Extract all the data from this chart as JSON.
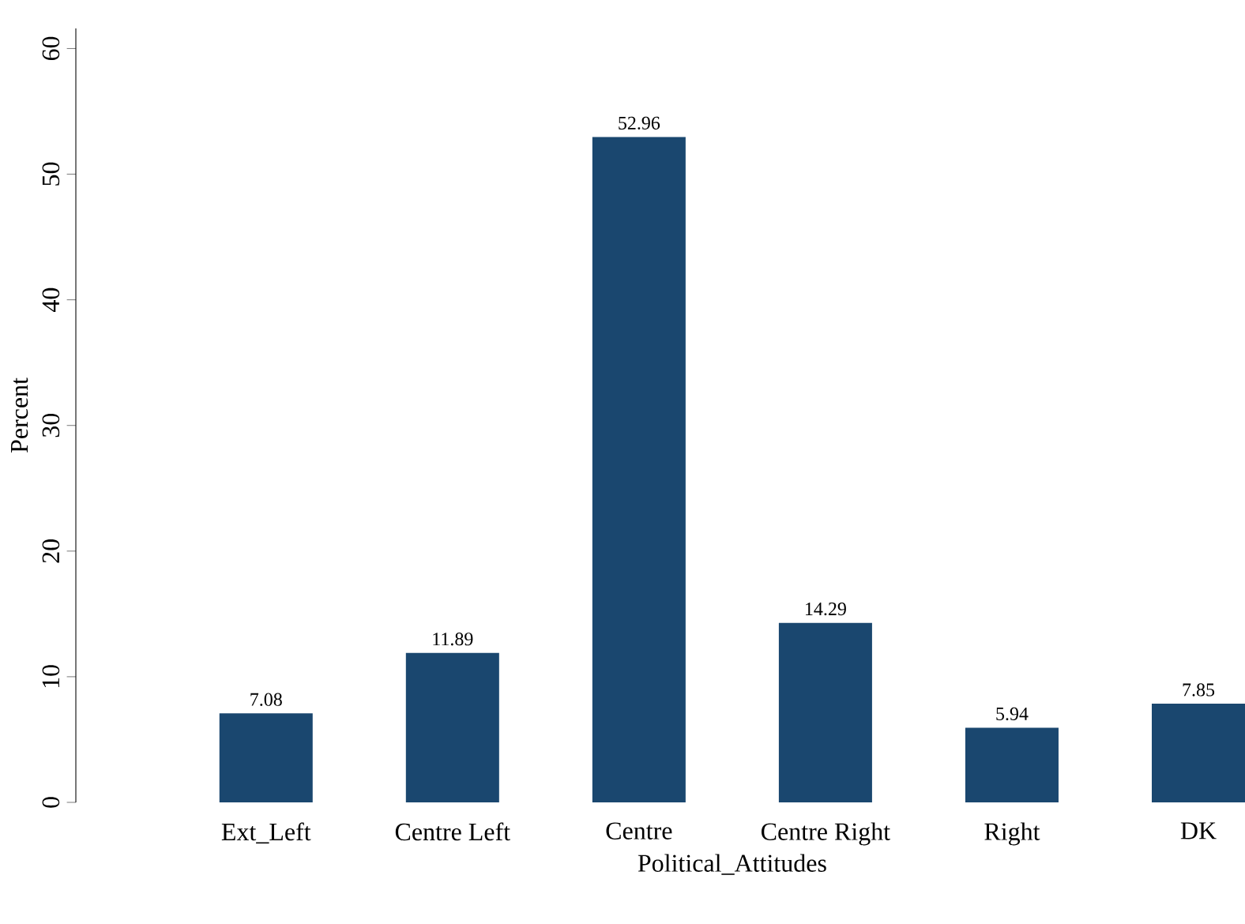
{
  "chart_data": {
    "type": "bar",
    "xlabel": "Political_Attitudes",
    "ylabel": "Percent",
    "categories": [
      "Ext_Left",
      "Centre Left",
      "Centre",
      "Centre Right",
      "Right",
      "DK"
    ],
    "values": [
      7.08,
      11.89,
      52.96,
      14.29,
      5.94,
      7.85
    ],
    "color": "#1a476f",
    "ylim": [
      0,
      61.6
    ],
    "yticks": [
      0,
      10,
      20,
      30,
      40,
      50,
      60
    ],
    "data_labels": true
  }
}
